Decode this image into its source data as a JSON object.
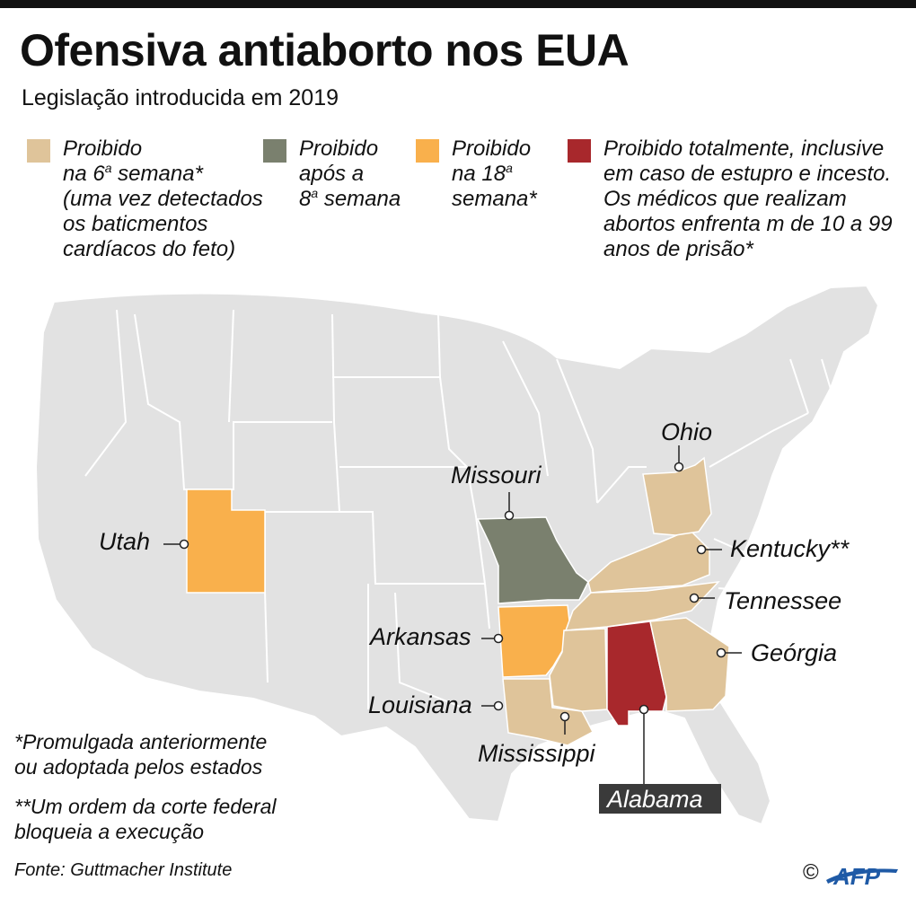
{
  "title": "Ofensiva antiaborto nos EUA",
  "subtitle": "Legislação introducida em 2019",
  "legend": [
    {
      "color": "#dfc49a",
      "lines": [
        "Proibido",
        "na 6ª semana*",
        "(uma vez detectados",
        "os baticmentos",
        "cardíacos do feto)"
      ]
    },
    {
      "color": "#7a806e",
      "lines": [
        "Proibido",
        "após a",
        "8ª semana"
      ]
    },
    {
      "color": "#f9b04c",
      "lines": [
        "Proibido",
        "na 18ª",
        "semana*"
      ]
    },
    {
      "color": "#a8282c",
      "lines": [
        "Proibido totalmente, inclusive",
        "em caso de estupro e incesto.",
        "Os médicos que realizam",
        "abortos enfrenta m de 10 a 99",
        "anos de prisão*"
      ]
    }
  ],
  "map": {
    "base_color": "#e2e2e2",
    "border_color": "#ffffff",
    "states": [
      {
        "name": "Utah",
        "category": 2
      },
      {
        "name": "Missouri",
        "category": 1
      },
      {
        "name": "Arkansas",
        "category": 2
      },
      {
        "name": "Louisiana",
        "category": 0
      },
      {
        "name": "Mississippi",
        "category": 0
      },
      {
        "name": "Alabama",
        "category": 3
      },
      {
        "name": "Geórgia",
        "category": 0
      },
      {
        "name": "Tennessee",
        "category": 0
      },
      {
        "name": "Kentucky**",
        "category": 0
      },
      {
        "name": "Ohio",
        "category": 0
      }
    ]
  },
  "footnotes": [
    [
      "*Promulgada anteriormente",
      "ou adoptada pelos estados"
    ],
    [
      "**Um ordem da corte federal",
      "bloqueia a execução"
    ]
  ],
  "source": "Fonte: Guttmacher Institute",
  "copyright": "©",
  "logo_text": "AFP"
}
